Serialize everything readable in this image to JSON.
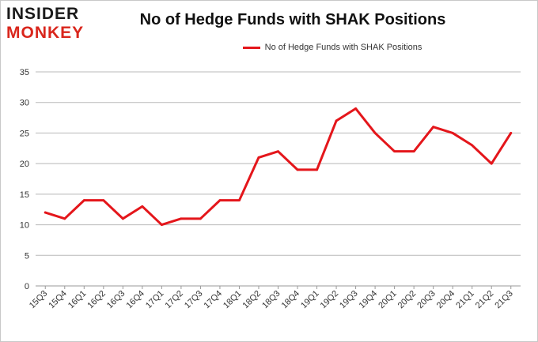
{
  "logo": {
    "line1": "INSIDER",
    "line2": "MONKEY"
  },
  "chart_data": {
    "type": "line",
    "title": "No of Hedge Funds with SHAK Positions",
    "xlabel": "",
    "ylabel": "",
    "categories": [
      "15Q3",
      "15Q4",
      "16Q1",
      "16Q2",
      "16Q3",
      "16Q4",
      "17Q1",
      "17Q2",
      "17Q3",
      "17Q4",
      "18Q1",
      "18Q2",
      "18Q3",
      "18Q4",
      "19Q1",
      "19Q2",
      "19Q3",
      "19Q4",
      "20Q1",
      "20Q2",
      "20Q3",
      "20Q4",
      "21Q1",
      "21Q2",
      "21Q3"
    ],
    "series": [
      {
        "name": "No of Hedge Funds with SHAK Positions",
        "color": "#e4161b",
        "values": [
          12,
          11,
          14,
          14,
          11,
          13,
          10,
          11,
          11,
          14,
          14,
          21,
          22,
          19,
          19,
          27,
          29,
          25,
          22,
          22,
          26,
          25,
          23,
          20,
          25
        ]
      }
    ],
    "ylim": [
      0,
      35
    ],
    "yticks": [
      0,
      5,
      10,
      15,
      20,
      25,
      30,
      35
    ],
    "grid": true,
    "legend": "top-center"
  }
}
